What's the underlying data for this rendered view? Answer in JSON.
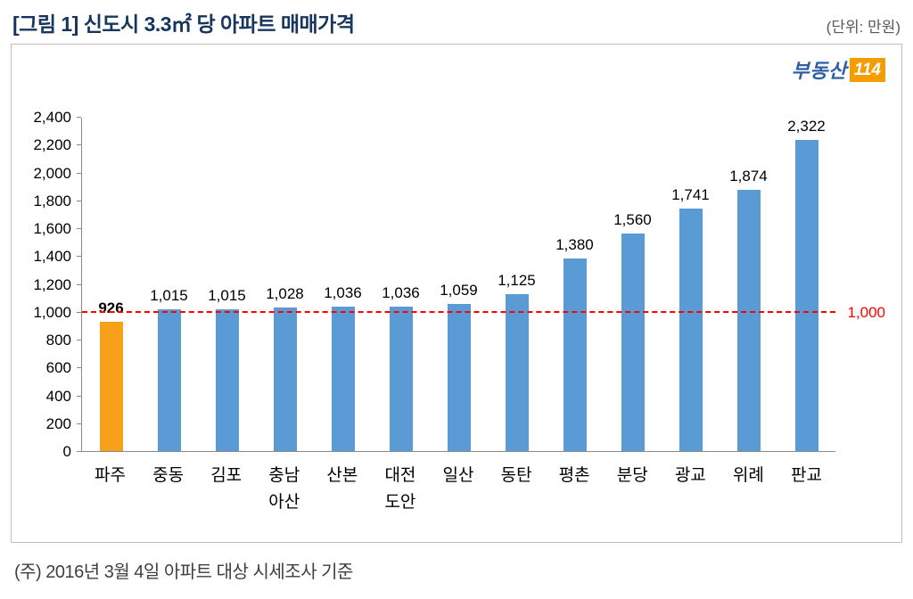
{
  "header": {
    "title": "[그림 1] 신도시 3.3㎡ 당 아파트 매매가격",
    "unit": "(단위: 만원)"
  },
  "logo": {
    "text": "부동산",
    "badge": "114",
    "brand_blue": "#2D5FA6",
    "badge_orange": "#F59C00"
  },
  "chart_data": {
    "type": "bar",
    "title": "",
    "xlabel": "",
    "ylabel": "",
    "categories": [
      "파주",
      "중동",
      "김포",
      "충남\n아산",
      "산본",
      "대전\n도안",
      "일산",
      "동탄",
      "평촌",
      "분당",
      "광교",
      "위례",
      "판교"
    ],
    "values": [
      926,
      1015,
      1015,
      1028,
      1036,
      1036,
      1059,
      1125,
      1380,
      1560,
      1741,
      1874,
      2322
    ],
    "value_labels": [
      "926",
      "1,015",
      "1,015",
      "1,028",
      "1,036",
      "1,036",
      "1,059",
      "1,125",
      "1,380",
      "1,560",
      "1,741",
      "1,874",
      "2,322"
    ],
    "highlight_index": 0,
    "bar_color_default": "#5B9BD5",
    "bar_color_highlight": "#F7A11A",
    "ylim": [
      0,
      2400
    ],
    "ytick_step": 200,
    "grid": false,
    "legend": false,
    "reference_line": {
      "value": 1000,
      "label": "1,000",
      "color": "#FF0000"
    }
  },
  "footnote": "(주) 2016년 3월 4일 아파트 대상 시세조사 기준"
}
